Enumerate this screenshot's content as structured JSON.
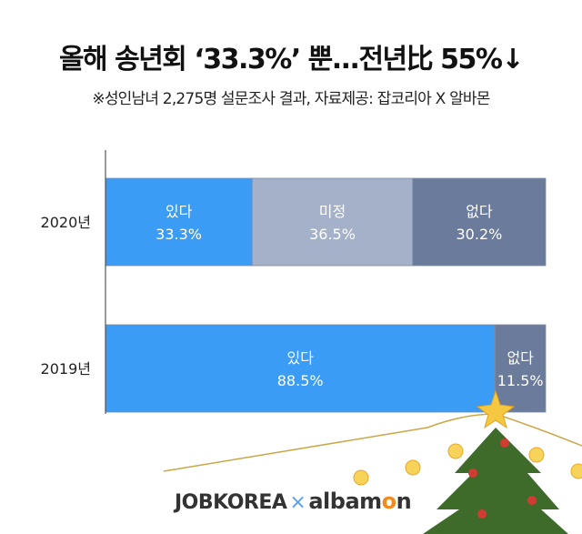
{
  "title": "올해 송년회 ‘33.3%’ 뿐...전년比 55%↓",
  "subtitle": "※성인남녀 2,275명 설문조사 결과, 자료제공: 잡코리아 X 알바몬",
  "logo": {
    "left": "JOBKOREA",
    "sep": "×",
    "right_a": "albam",
    "right_o": "o",
    "right_n": "n"
  },
  "colors": {
    "yes": "#3b9cf6",
    "undecided": "#a4b1c9",
    "no": "#6b7b9b"
  },
  "chart_data": {
    "type": "bar",
    "orientation": "horizontal-stacked",
    "categories": [
      "2020년",
      "2019년"
    ],
    "series": [
      {
        "name": "있다",
        "values": [
          33.3,
          88.5
        ],
        "labels": [
          "33.3%",
          "88.5%"
        ]
      },
      {
        "name": "미정",
        "values": [
          36.5,
          0
        ],
        "labels": [
          "36.5%",
          ""
        ]
      },
      {
        "name": "없다",
        "values": [
          30.2,
          11.5
        ],
        "labels": [
          "30.2%",
          "11.5%"
        ]
      }
    ],
    "xlim": [
      0,
      100
    ]
  }
}
